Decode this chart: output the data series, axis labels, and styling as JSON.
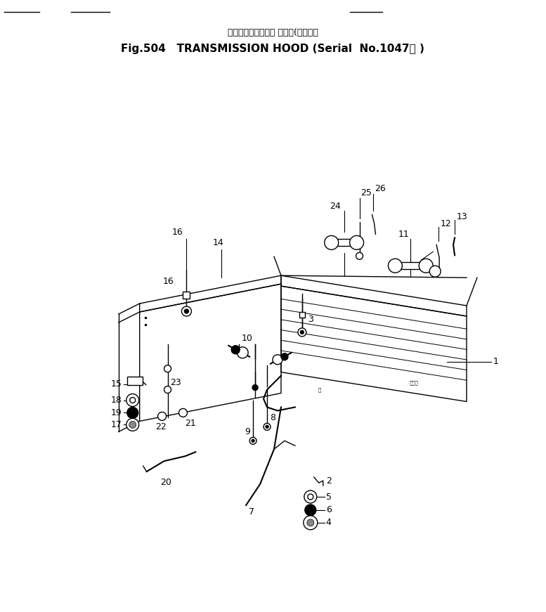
{
  "title_japanese": "トランスミッション フード(適用号機",
  "title_english": "Fig.504   TRANSMISSION HOOD (Serial  No.1047～ )",
  "bg_color": "#ffffff",
  "line_color": "#000000",
  "fig_width": 7.77,
  "fig_height": 8.71,
  "dpi": 100
}
